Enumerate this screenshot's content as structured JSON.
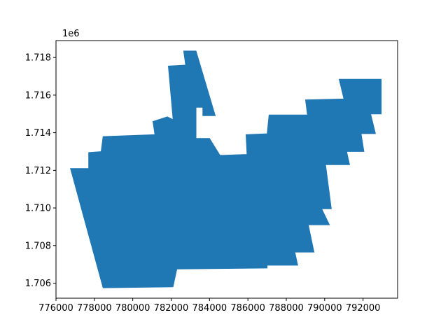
{
  "chart_data": {
    "type": "area",
    "title": "",
    "xlabel": "",
    "ylabel": "",
    "y_offset_label": "1e6",
    "xlim": [
      776000,
      793800
    ],
    "ylim": [
      1705200,
      1718900
    ],
    "x_ticks": [
      776000,
      778000,
      780000,
      782000,
      784000,
      786000,
      788000,
      790000,
      792000
    ],
    "x_tick_labels": [
      "776000",
      "778000",
      "780000",
      "782000",
      "784000",
      "786000",
      "788000",
      "790000",
      "792000"
    ],
    "y_ticks": [
      1706000,
      1708000,
      1710000,
      1712000,
      1714000,
      1716000,
      1718000
    ],
    "y_tick_labels": [
      "1.706",
      "1.708",
      "1.710",
      "1.712",
      "1.714",
      "1.716",
      "1.718"
    ],
    "grid": false,
    "fill_color": "#1f77b4",
    "series": [
      {
        "outline": [
          [
            776750,
            1712100
          ],
          [
            777700,
            1712100
          ],
          [
            777700,
            1712950
          ],
          [
            778350,
            1713000
          ],
          [
            778450,
            1713800
          ],
          [
            781150,
            1713900
          ],
          [
            781050,
            1714600
          ],
          [
            781800,
            1714850
          ],
          [
            782100,
            1714700
          ],
          [
            781850,
            1717550
          ],
          [
            782750,
            1717600
          ],
          [
            782650,
            1718350
          ],
          [
            783300,
            1718350
          ],
          [
            784300,
            1714900
          ],
          [
            783650,
            1714900
          ],
          [
            783650,
            1715350
          ],
          [
            783300,
            1715350
          ],
          [
            783300,
            1713700
          ],
          [
            784000,
            1713700
          ],
          [
            784550,
            1712800
          ],
          [
            785950,
            1712850
          ],
          [
            785900,
            1713900
          ],
          [
            787000,
            1713950
          ],
          [
            787100,
            1714950
          ],
          [
            789100,
            1714950
          ],
          [
            789000,
            1715750
          ],
          [
            791000,
            1715800
          ],
          [
            790750,
            1716850
          ],
          [
            792950,
            1716850
          ],
          [
            792950,
            1715000
          ],
          [
            792400,
            1715000
          ],
          [
            792650,
            1713950
          ],
          [
            791900,
            1713950
          ],
          [
            792050,
            1713000
          ],
          [
            791150,
            1713000
          ],
          [
            791300,
            1712300
          ],
          [
            790050,
            1712300
          ],
          [
            790350,
            1709950
          ],
          [
            789850,
            1709950
          ],
          [
            790250,
            1709100
          ],
          [
            789150,
            1709100
          ],
          [
            789450,
            1707650
          ],
          [
            788450,
            1707650
          ],
          [
            788600,
            1706950
          ],
          [
            787000,
            1706950
          ],
          [
            787000,
            1706800
          ],
          [
            782300,
            1706750
          ],
          [
            782100,
            1705800
          ],
          [
            778450,
            1705750
          ]
        ]
      }
    ]
  }
}
